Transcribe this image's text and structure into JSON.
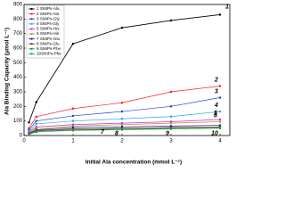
{
  "chart_data": {
    "type": "line",
    "x_label": "Initial Ala concentration (mmol L⁻¹)",
    "y_label": "Ala Binding Capacity (μmol L⁻¹)",
    "x": [
      0.1,
      0.25,
      1,
      2,
      3,
      4
    ],
    "xlim": [
      0,
      4.2
    ],
    "xticks": [
      0,
      1,
      2,
      3,
      4
    ],
    "ylim": [
      0,
      900
    ],
    "yticks": [
      0,
      100,
      200,
      300,
      400,
      500,
      600,
      700,
      800,
      900
    ],
    "legend": "top-left",
    "annotations": [
      "1",
      "2",
      "3",
      "4",
      "5",
      "6",
      "7",
      "8",
      "9",
      "10"
    ],
    "series": [
      {
        "name": "1 SMIPs-Ala",
        "color": "#000000",
        "values": [
          90,
          230,
          630,
          740,
          790,
          830
        ]
      },
      {
        "name": "2 SNIPs-Ala",
        "color": "#ff2020",
        "values": [
          50,
          130,
          185,
          225,
          300,
          340
        ]
      },
      {
        "name": "3 SMIPs-Gly",
        "color": "#2040e0",
        "values": [
          40,
          100,
          135,
          165,
          200,
          260
        ]
      },
      {
        "name": "4 SNIPs-Gly",
        "color": "#20b0d0",
        "values": [
          30,
          80,
          100,
          115,
          130,
          165
        ]
      },
      {
        "name": "5 SMIPs-His",
        "color": "#e020e0",
        "values": [
          25,
          60,
          75,
          85,
          95,
          110
        ]
      },
      {
        "name": "6 SNIPs-His",
        "color": "#a0a020",
        "values": [
          20,
          50,
          65,
          75,
          85,
          95
        ]
      },
      {
        "name": "7 SMIPs-Glu",
        "color": "#202080",
        "values": [
          15,
          40,
          55,
          60,
          65,
          70
        ]
      },
      {
        "name": "8 SNIPs-Glu",
        "color": "#902020",
        "values": [
          12,
          35,
          45,
          50,
          55,
          60
        ]
      },
      {
        "name": "9 SMIPs-Phe",
        "color": "#208080",
        "values": [
          10,
          30,
          40,
          45,
          50,
          55
        ]
      },
      {
        "name": "10SNIPs-Phe",
        "color": "#20a020",
        "values": [
          8,
          25,
          35,
          40,
          45,
          50
        ]
      }
    ]
  }
}
